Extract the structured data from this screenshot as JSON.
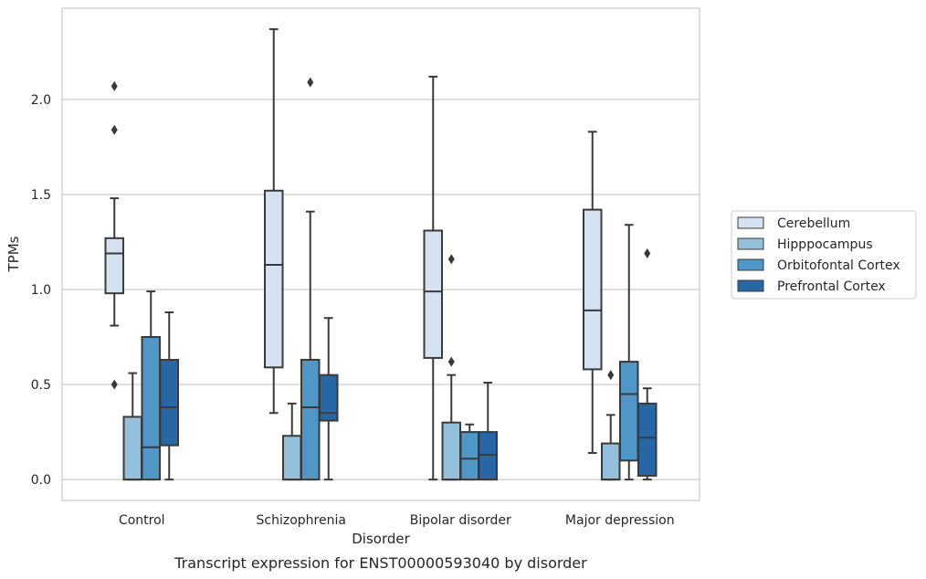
{
  "chart_data": {
    "type": "box",
    "caption": "Transcript expression for ENST00000593040 by disorder",
    "xlabel": "Disorder",
    "ylabel": "TPMs",
    "ylim": [
      -0.11,
      2.48
    ],
    "yticks": [
      0.0,
      0.5,
      1.0,
      1.5,
      2.0
    ],
    "ytick_labels": [
      "0.0",
      "0.5",
      "1.0",
      "1.5",
      "2.0"
    ],
    "grid": "horizontal",
    "legend_position": "right",
    "categories": [
      "Control",
      "Schizophrenia",
      "Bipolar disorder",
      "Major depression"
    ],
    "series": [
      {
        "name": "Cerebellum",
        "color": "#d4e2f1",
        "boxes": [
          {
            "whislo": 0.81,
            "q1": 0.98,
            "med": 1.19,
            "q3": 1.27,
            "whishi": 1.48,
            "fliers": [
              2.07,
              1.84,
              0.5
            ]
          },
          {
            "whislo": 0.35,
            "q1": 0.59,
            "med": 1.13,
            "q3": 1.52,
            "whishi": 2.37,
            "fliers": []
          },
          {
            "whislo": 0.0,
            "q1": 0.64,
            "med": 0.99,
            "q3": 1.31,
            "whishi": 2.12,
            "fliers": []
          },
          {
            "whislo": 0.14,
            "q1": 0.58,
            "med": 0.89,
            "q3": 1.42,
            "whishi": 1.83,
            "fliers": []
          }
        ]
      },
      {
        "name": "Hipppocampus",
        "color": "#95c0dc",
        "boxes": [
          {
            "whislo": 0.0,
            "q1": 0.0,
            "med": 0.0,
            "q3": 0.33,
            "whishi": 0.56,
            "fliers": []
          },
          {
            "whislo": 0.0,
            "q1": 0.0,
            "med": 0.0,
            "q3": 0.23,
            "whishi": 0.4,
            "fliers": []
          },
          {
            "whislo": 0.0,
            "q1": 0.0,
            "med": 0.0,
            "q3": 0.3,
            "whishi": 0.55,
            "fliers": [
              1.16,
              0.62
            ]
          },
          {
            "whislo": 0.0,
            "q1": 0.0,
            "med": 0.0,
            "q3": 0.19,
            "whishi": 0.34,
            "fliers": [
              0.55
            ]
          }
        ]
      },
      {
        "name": "Orbitofontal Cortex",
        "color": "#5096c6",
        "boxes": [
          {
            "whislo": 0.0,
            "q1": 0.0,
            "med": 0.17,
            "q3": 0.75,
            "whishi": 0.99,
            "fliers": []
          },
          {
            "whislo": 0.0,
            "q1": 0.0,
            "med": 0.38,
            "q3": 0.63,
            "whishi": 1.41,
            "fliers": [
              2.09
            ]
          },
          {
            "whislo": 0.0,
            "q1": 0.0,
            "med": 0.11,
            "q3": 0.25,
            "whishi": 0.29,
            "fliers": []
          },
          {
            "whislo": 0.0,
            "q1": 0.1,
            "med": 0.45,
            "q3": 0.62,
            "whishi": 1.34,
            "fliers": []
          }
        ]
      },
      {
        "name": "Prefrontal Cortex",
        "color": "#2767a6",
        "boxes": [
          {
            "whislo": 0.0,
            "q1": 0.18,
            "med": 0.38,
            "q3": 0.63,
            "whishi": 0.88,
            "fliers": []
          },
          {
            "whislo": 0.0,
            "q1": 0.31,
            "med": 0.35,
            "q3": 0.55,
            "whishi": 0.85,
            "fliers": []
          },
          {
            "whislo": 0.0,
            "q1": 0.0,
            "med": 0.13,
            "q3": 0.25,
            "whishi": 0.51,
            "fliers": []
          },
          {
            "whislo": 0.0,
            "q1": 0.02,
            "med": 0.22,
            "q3": 0.4,
            "whishi": 0.48,
            "fliers": [
              1.19
            ]
          }
        ]
      }
    ]
  }
}
